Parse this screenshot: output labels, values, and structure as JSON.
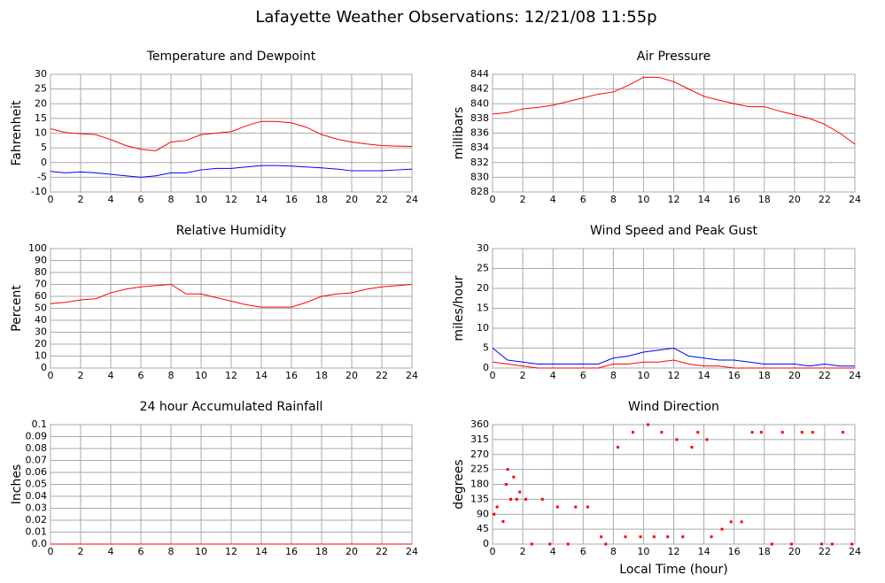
{
  "title": "Lafayette Weather Observations: 12/21/08 11:55p",
  "chart_data": [
    {
      "type": "line",
      "title": "Temperature and Dewpoint",
      "ylabel": "Fahrenheit",
      "x": [
        0,
        1,
        2,
        3,
        4,
        5,
        6,
        7,
        8,
        9,
        10,
        11,
        12,
        13,
        14,
        15,
        16,
        17,
        18,
        19,
        20,
        21,
        22,
        23,
        24
      ],
      "xlim": [
        0,
        24
      ],
      "xticks": [
        0,
        2,
        4,
        6,
        8,
        10,
        12,
        14,
        16,
        18,
        20,
        22,
        24
      ],
      "ylim": [
        -10,
        30
      ],
      "yticks": [
        -10,
        -5,
        0,
        5,
        10,
        15,
        20,
        25,
        30
      ],
      "grid": true,
      "series": [
        {
          "color": "#ff0000",
          "values": [
            11.5,
            10.2,
            9.8,
            9.5,
            7.8,
            5.8,
            4.5,
            4,
            7,
            7.5,
            9.5,
            10,
            10.5,
            12.5,
            14,
            14,
            13.5,
            12,
            9.5,
            8,
            7,
            6.3,
            5.8,
            5.6,
            5.5
          ]
        },
        {
          "color": "#0000ff",
          "values": [
            -3,
            -3.5,
            -3.2,
            -3.5,
            -4,
            -4.5,
            -5,
            -4.5,
            -3.5,
            -3.5,
            -2.5,
            -2,
            -2,
            -1.5,
            -1,
            -1,
            -1.2,
            -1.5,
            -1.8,
            -2.2,
            -2.8,
            -2.8,
            -2.8,
            -2.5,
            -2.2
          ]
        }
      ]
    },
    {
      "type": "line",
      "title": "Air Pressure",
      "ylabel": "millibars",
      "x": [
        0,
        1,
        2,
        3,
        4,
        5,
        6,
        7,
        8,
        9,
        10,
        11,
        12,
        13,
        14,
        15,
        16,
        17,
        18,
        19,
        20,
        21,
        22,
        23,
        24
      ],
      "xlim": [
        0,
        24
      ],
      "xticks": [
        0,
        2,
        4,
        6,
        8,
        10,
        12,
        14,
        16,
        18,
        20,
        22,
        24
      ],
      "ylim": [
        828,
        844
      ],
      "yticks": [
        828,
        830,
        832,
        834,
        836,
        838,
        840,
        842,
        844
      ],
      "grid": true,
      "series": [
        {
          "color": "#ff0000",
          "values": [
            838.6,
            838.8,
            839.3,
            839.5,
            839.8,
            840.3,
            840.8,
            841.3,
            841.6,
            842.5,
            843.6,
            843.6,
            843,
            842,
            841,
            840.5,
            840,
            839.6,
            839.6,
            839,
            838.5,
            838,
            837.2,
            836,
            834.5
          ]
        }
      ]
    },
    {
      "type": "line",
      "title": "Relative Humidity",
      "ylabel": "Percent",
      "x": [
        0,
        1,
        2,
        3,
        4,
        5,
        6,
        7,
        8,
        9,
        10,
        11,
        12,
        13,
        14,
        15,
        16,
        17,
        18,
        19,
        20,
        21,
        22,
        23,
        24
      ],
      "xlim": [
        0,
        24
      ],
      "xticks": [
        0,
        2,
        4,
        6,
        8,
        10,
        12,
        14,
        16,
        18,
        20,
        22,
        24
      ],
      "ylim": [
        0,
        100
      ],
      "yticks": [
        0,
        10,
        20,
        30,
        40,
        50,
        60,
        70,
        80,
        90,
        100
      ],
      "grid": true,
      "series": [
        {
          "color": "#ff0000",
          "values": [
            54,
            55,
            57,
            58,
            63,
            66,
            68,
            69,
            70,
            62,
            62,
            59,
            56,
            53,
            51,
            51,
            51,
            55,
            60,
            62,
            63,
            66,
            68,
            69,
            70
          ]
        }
      ]
    },
    {
      "type": "line",
      "title": "Wind Speed and Peak Gust",
      "ylabel": "miles/hour",
      "x": [
        0,
        1,
        2,
        3,
        4,
        5,
        6,
        7,
        8,
        9,
        10,
        11,
        12,
        13,
        14,
        15,
        16,
        17,
        18,
        19,
        20,
        21,
        22,
        23,
        24
      ],
      "xlim": [
        0,
        24
      ],
      "xticks": [
        0,
        2,
        4,
        6,
        8,
        10,
        12,
        14,
        16,
        18,
        20,
        22,
        24
      ],
      "ylim": [
        0,
        30
      ],
      "yticks": [
        0,
        5,
        10,
        15,
        20,
        25,
        30
      ],
      "grid": true,
      "series": [
        {
          "color": "#0000ff",
          "values": [
            5,
            2,
            1.5,
            1,
            1,
            1,
            1,
            1,
            2.5,
            3,
            4,
            4.5,
            5,
            3,
            2.5,
            2,
            2,
            1.5,
            1,
            1,
            1,
            0.5,
            1,
            0.5,
            0.5
          ]
        },
        {
          "color": "#ff0000",
          "values": [
            1.5,
            1,
            0.5,
            0,
            0,
            0,
            0,
            0,
            1,
            1,
            1.5,
            1.5,
            2,
            1,
            0.5,
            0.5,
            0,
            0,
            0,
            0,
            0,
            0,
            0,
            0,
            0
          ]
        }
      ]
    },
    {
      "type": "line",
      "title": "24 hour Accumulated Rainfall",
      "ylabel": "Inches",
      "x": [
        0,
        24
      ],
      "xlim": [
        0,
        24
      ],
      "xticks": [
        0,
        2,
        4,
        6,
        8,
        10,
        12,
        14,
        16,
        18,
        20,
        22,
        24
      ],
      "ylim": [
        0,
        0.1
      ],
      "yticks": [
        {
          "value": 0,
          "label": "0.0"
        },
        0.01,
        0.02,
        0.03,
        0.04,
        0.05,
        0.06,
        0.07,
        0.08,
        0.09,
        0.1
      ],
      "grid": true,
      "series": [
        {
          "color": "#ff0000",
          "values": [
            0,
            0
          ]
        }
      ]
    },
    {
      "type": "scatter",
      "title": "Wind Direction",
      "ylabel": "degrees",
      "xlabel": "Local Time (hour)",
      "xlim": [
        0,
        24
      ],
      "xticks": [
        0,
        2,
        4,
        6,
        8,
        10,
        12,
        14,
        16,
        18,
        20,
        22,
        24
      ],
      "ylim": [
        0,
        360
      ],
      "yticks": [
        0,
        45,
        90,
        135,
        180,
        225,
        270,
        315,
        360
      ],
      "grid": true,
      "series": [
        {
          "color": "#ff0000",
          "x": [
            0.1,
            0.3,
            0.7,
            0.9,
            1.0,
            1.2,
            1.4,
            1.6,
            1.8,
            2.2,
            2.6,
            3.3,
            3.8,
            4.3,
            5.0,
            5.5,
            6.3,
            7.2,
            7.5,
            8.3,
            8.8,
            9.3,
            9.8,
            10.3,
            10.7,
            11.2,
            11.6,
            12.2,
            12.6,
            13.2,
            13.6,
            14.2,
            14.5,
            15.2,
            15.8,
            16.5,
            17.2,
            17.8,
            18.5,
            19.2,
            19.8,
            20.5,
            21.2,
            21.8,
            22.5,
            23.2,
            23.8
          ],
          "values": [
            90,
            112,
            68,
            180,
            225,
            135,
            202,
            135,
            157,
            135,
            0,
            135,
            0,
            112,
            0,
            112,
            112,
            22,
            0,
            292,
            22,
            337,
            22,
            360,
            22,
            337,
            22,
            315,
            22,
            292,
            337,
            315,
            22,
            45,
            67,
            67,
            337,
            337,
            0,
            337,
            0,
            337,
            337,
            0,
            0,
            337,
            0
          ]
        }
      ]
    }
  ]
}
